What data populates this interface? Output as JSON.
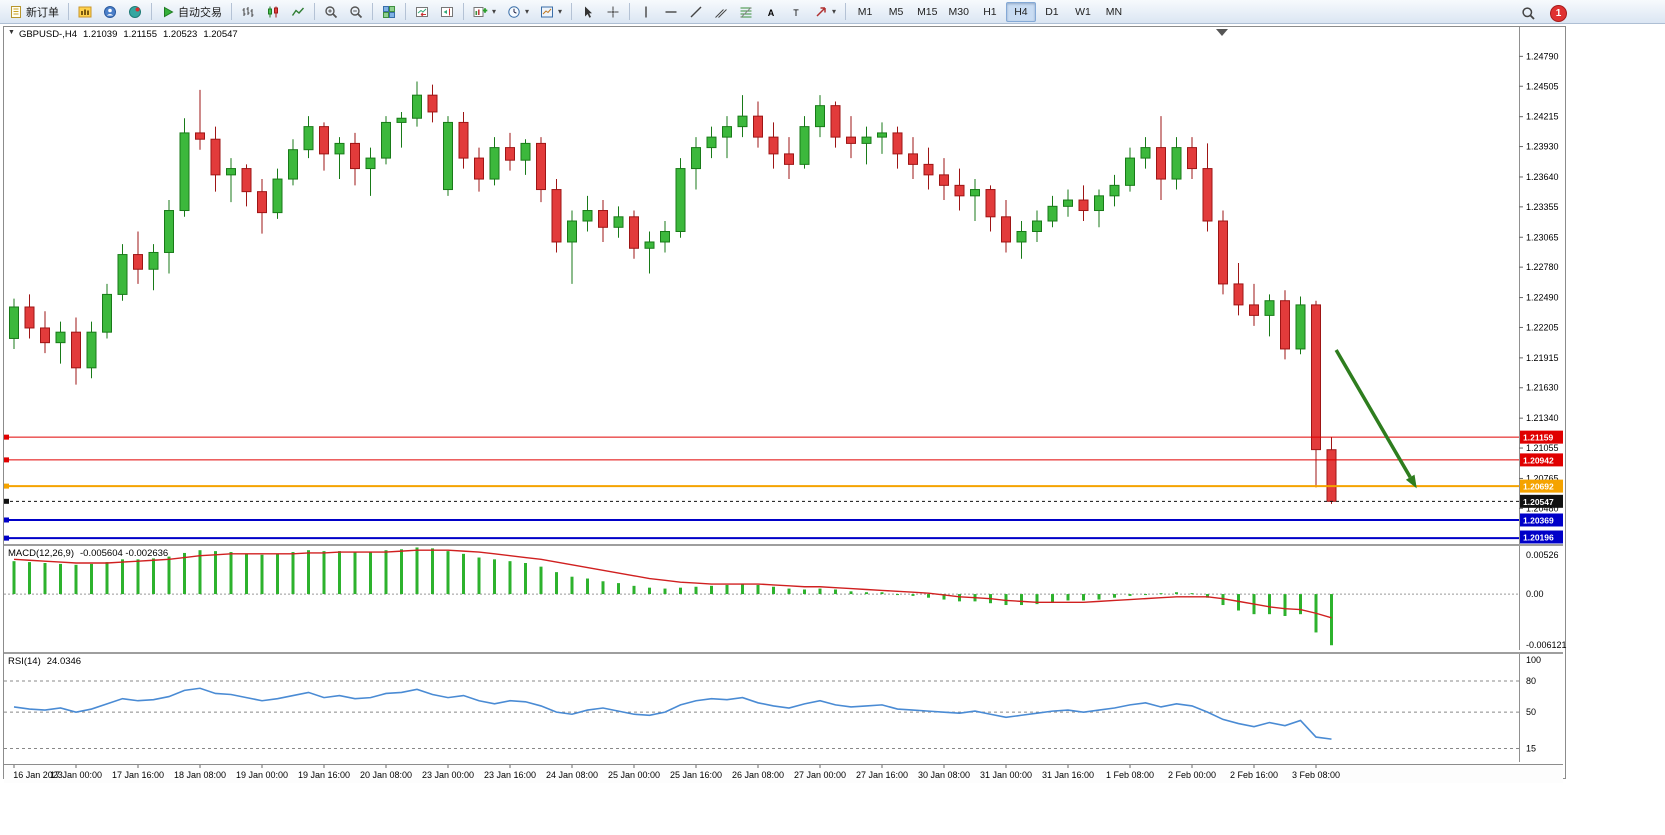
{
  "toolbar": {
    "groups": [
      {
        "items": [
          {
            "name": "new-order-button",
            "icon": "new-order-icon",
            "label": "新订单"
          }
        ]
      },
      {
        "items": [
          {
            "name": "charts-button",
            "icon": "charts-icon"
          },
          {
            "name": "market-watch-button",
            "icon": "market-watch-icon"
          },
          {
            "name": "navigator-button",
            "icon": "navigator-icon"
          }
        ]
      },
      {
        "items": [
          {
            "name": "autotrading-button",
            "icon": "autotrading-icon",
            "label": "自动交易"
          }
        ]
      },
      {
        "items": [
          {
            "name": "bar-chart-button",
            "icon": "bar-chart-icon"
          },
          {
            "name": "candlestick-chart-button",
            "icon": "candlestick-icon"
          },
          {
            "name": "line-chart-button",
            "icon": "line-chart-icon"
          }
        ]
      },
      {
        "items": [
          {
            "name": "zoom-in-button",
            "icon": "zoom-in-icon"
          },
          {
            "name": "zoom-out-button",
            "icon": "zoom-out-icon"
          }
        ]
      },
      {
        "items": [
          {
            "name": "tile-windows-button",
            "icon": "tile-windows-icon"
          }
        ]
      },
      {
        "items": [
          {
            "name": "auto-scroll-button",
            "icon": "auto-scroll-icon"
          },
          {
            "name": "chart-shift-button",
            "icon": "chart-shift-icon"
          }
        ]
      },
      {
        "items": [
          {
            "name": "new-chart-button",
            "icon": "new-chart-icon",
            "dropdown": true
          },
          {
            "name": "periods-button",
            "icon": "period-icon",
            "dropdown": true
          },
          {
            "name": "templates-button",
            "icon": "template-icon",
            "dropdown": true
          }
        ]
      },
      {
        "items": [
          {
            "name": "cursor-button",
            "icon": "cursor-icon"
          },
          {
            "name": "crosshair-button",
            "icon": "crosshair-icon"
          }
        ]
      },
      {
        "items": [
          {
            "name": "vertical-line-button",
            "icon": "vertical-line-icon"
          },
          {
            "name": "horizontal-line-button",
            "icon": "horizontal-line-icon"
          },
          {
            "name": "trendline-button",
            "icon": "trendline-icon"
          },
          {
            "name": "channel-button",
            "icon": "channel-icon"
          },
          {
            "name": "fibonacci-button",
            "icon": "fibonacci-icon"
          },
          {
            "name": "text-button",
            "icon": "text-icon"
          },
          {
            "name": "label-button",
            "icon": "label-icon"
          },
          {
            "name": "arrows-button",
            "icon": "arrows-icon",
            "dropdown": true
          }
        ]
      }
    ],
    "timeframes": [
      "M1",
      "M5",
      "M15",
      "M30",
      "H1",
      "H4",
      "D1",
      "W1",
      "MN"
    ],
    "active_timeframe": "H4",
    "badge_count": "1"
  },
  "chart": {
    "symbol_label": "GBPUSD-,H4",
    "ohlc": {
      "open": "1.21039",
      "high": "1.21155",
      "low": "1.20523",
      "close": "1.20547"
    }
  },
  "chart_data": {
    "type": "candlestick",
    "symbol": "GBPUSD",
    "timeframe": "H4",
    "label_every": 4,
    "x_labels": [
      "16 Jan 2023",
      "17 Jan 00:00",
      "17 Jan 16:00",
      "18 Jan 08:00",
      "19 Jan 00:00",
      "19 Jan 16:00",
      "20 Jan 08:00",
      "23 Jan 00:00",
      "23 Jan 16:00",
      "24 Jan 08:00",
      "25 Jan 00:00",
      "25 Jan 16:00",
      "26 Jan 08:00",
      "27 Jan 00:00",
      "27 Jan 16:00",
      "30 Jan 08:00",
      "31 Jan 00:00",
      "31 Jan 16:00",
      "1 Feb 08:00",
      "2 Feb 00:00",
      "2 Feb 16:00",
      "3 Feb 08:00"
    ],
    "candles": [
      [
        1.221,
        1.2248,
        1.22,
        1.224
      ],
      [
        1.224,
        1.2252,
        1.221,
        1.222
      ],
      [
        1.222,
        1.2236,
        1.2196,
        1.2206
      ],
      [
        1.2206,
        1.2226,
        1.2186,
        1.2216
      ],
      [
        1.2216,
        1.223,
        1.2166,
        1.2182
      ],
      [
        1.2182,
        1.2226,
        1.2172,
        1.2216
      ],
      [
        1.2216,
        1.2262,
        1.221,
        1.2252
      ],
      [
        1.2252,
        1.23,
        1.2246,
        1.229
      ],
      [
        1.229,
        1.2312,
        1.2262,
        1.2276
      ],
      [
        1.2276,
        1.23,
        1.2256,
        1.2292
      ],
      [
        1.2292,
        1.2342,
        1.2272,
        1.2332
      ],
      [
        1.2332,
        1.242,
        1.2326,
        1.2406
      ],
      [
        1.2406,
        1.2447,
        1.239,
        1.24
      ],
      [
        1.24,
        1.2412,
        1.235,
        1.2366
      ],
      [
        1.2366,
        1.2382,
        1.234,
        1.2372
      ],
      [
        1.2372,
        1.2376,
        1.2336,
        1.235
      ],
      [
        1.235,
        1.2362,
        1.231,
        1.233
      ],
      [
        1.233,
        1.2372,
        1.2324,
        1.2362
      ],
      [
        1.2362,
        1.24,
        1.2356,
        1.239
      ],
      [
        1.239,
        1.2422,
        1.2382,
        1.2412
      ],
      [
        1.2412,
        1.2416,
        1.237,
        1.2386
      ],
      [
        1.2386,
        1.2402,
        1.2362,
        1.2396
      ],
      [
        1.2396,
        1.2406,
        1.2356,
        1.2372
      ],
      [
        1.2372,
        1.2392,
        1.2346,
        1.2382
      ],
      [
        1.2382,
        1.2422,
        1.2376,
        1.2416
      ],
      [
        1.2416,
        1.2426,
        1.2392,
        1.242
      ],
      [
        1.242,
        1.2455,
        1.2412,
        1.2442
      ],
      [
        1.2442,
        1.2452,
        1.2416,
        1.2426
      ],
      [
        1.2352,
        1.2422,
        1.2346,
        1.2416
      ],
      [
        1.2416,
        1.2426,
        1.2372,
        1.2382
      ],
      [
        1.2382,
        1.2392,
        1.235,
        1.2362
      ],
      [
        1.2362,
        1.2402,
        1.2356,
        1.2392
      ],
      [
        1.2392,
        1.2406,
        1.237,
        1.238
      ],
      [
        1.238,
        1.24,
        1.2366,
        1.2396
      ],
      [
        1.2396,
        1.2402,
        1.234,
        1.2352
      ],
      [
        1.2352,
        1.2362,
        1.2292,
        1.2302
      ],
      [
        1.2302,
        1.2332,
        1.2262,
        1.2322
      ],
      [
        1.2322,
        1.2346,
        1.2312,
        1.2332
      ],
      [
        1.2332,
        1.2342,
        1.2302,
        1.2316
      ],
      [
        1.2316,
        1.2336,
        1.2306,
        1.2326
      ],
      [
        1.2326,
        1.2332,
        1.2286,
        1.2296
      ],
      [
        1.2296,
        1.2312,
        1.2272,
        1.2302
      ],
      [
        1.2302,
        1.2322,
        1.2292,
        1.2312
      ],
      [
        1.2312,
        1.2382,
        1.2306,
        1.2372
      ],
      [
        1.2372,
        1.2402,
        1.2352,
        1.2392
      ],
      [
        1.2392,
        1.2412,
        1.2382,
        1.2402
      ],
      [
        1.2402,
        1.2422,
        1.2382,
        1.2412
      ],
      [
        1.2412,
        1.2442,
        1.2402,
        1.2422
      ],
      [
        1.2422,
        1.2436,
        1.2392,
        1.2402
      ],
      [
        1.2402,
        1.2416,
        1.2372,
        1.2386
      ],
      [
        1.2386,
        1.2402,
        1.2362,
        1.2376
      ],
      [
        1.2376,
        1.2422,
        1.2372,
        1.2412
      ],
      [
        1.2412,
        1.2442,
        1.2402,
        1.2432
      ],
      [
        1.2432,
        1.2436,
        1.2392,
        1.2402
      ],
      [
        1.2402,
        1.2422,
        1.2382,
        1.2396
      ],
      [
        1.2396,
        1.2412,
        1.2376,
        1.2402
      ],
      [
        1.2402,
        1.2416,
        1.2386,
        1.2406
      ],
      [
        1.2406,
        1.2412,
        1.2372,
        1.2386
      ],
      [
        1.2386,
        1.2402,
        1.2362,
        1.2376
      ],
      [
        1.2376,
        1.2392,
        1.2352,
        1.2366
      ],
      [
        1.2366,
        1.2382,
        1.2342,
        1.2356
      ],
      [
        1.2356,
        1.2372,
        1.2332,
        1.2346
      ],
      [
        1.2346,
        1.2362,
        1.2322,
        1.2352
      ],
      [
        1.2352,
        1.2356,
        1.2312,
        1.2326
      ],
      [
        1.2326,
        1.2342,
        1.2292,
        1.2302
      ],
      [
        1.2302,
        1.2322,
        1.2286,
        1.2312
      ],
      [
        1.2312,
        1.2332,
        1.2302,
        1.2322
      ],
      [
        1.2322,
        1.2346,
        1.2316,
        1.2336
      ],
      [
        1.2336,
        1.2352,
        1.2326,
        1.2342
      ],
      [
        1.2342,
        1.2356,
        1.2322,
        1.2332
      ],
      [
        1.2332,
        1.2352,
        1.2316,
        1.2346
      ],
      [
        1.2346,
        1.2366,
        1.2336,
        1.2356
      ],
      [
        1.2356,
        1.2392,
        1.235,
        1.2382
      ],
      [
        1.2382,
        1.2402,
        1.2372,
        1.2392
      ],
      [
        1.2392,
        1.2422,
        1.2342,
        1.2362
      ],
      [
        1.2362,
        1.2402,
        1.2352,
        1.2392
      ],
      [
        1.2392,
        1.2402,
        1.2362,
        1.2372
      ],
      [
        1.2372,
        1.2396,
        1.2312,
        1.2322
      ],
      [
        1.2322,
        1.2332,
        1.2252,
        1.2262
      ],
      [
        1.2262,
        1.2282,
        1.2232,
        1.2242
      ],
      [
        1.2242,
        1.2262,
        1.2222,
        1.2232
      ],
      [
        1.2232,
        1.2252,
        1.2212,
        1.2246
      ],
      [
        1.2246,
        1.2256,
        1.219,
        1.22
      ],
      [
        1.22,
        1.225,
        1.2195,
        1.2242
      ],
      [
        1.2242,
        1.2246,
        1.2068,
        1.2104
      ],
      [
        1.21039,
        1.21155,
        1.20523,
        1.20547
      ]
    ],
    "price_scale": {
      "ticks": [
        "1.24790",
        "1.24505",
        "1.24215",
        "1.23930",
        "1.23640",
        "1.23355",
        "1.23065",
        "1.22780",
        "1.22490",
        "1.22205",
        "1.21915",
        "1.21630",
        "1.21340",
        "1.21055",
        "1.20765",
        "1.20480"
      ]
    },
    "hlines": [
      {
        "name": "resistance-line-1",
        "price": 1.21159,
        "label": "1.21159",
        "color": "#e00000",
        "width": 1,
        "dashed": false
      },
      {
        "name": "resistance-line-2",
        "price": 1.20942,
        "label": "1.20942",
        "color": "#e00000",
        "width": 1,
        "dashed": false
      },
      {
        "name": "support-line-orange",
        "price": 1.20692,
        "label": "1.20692",
        "color": "#f5a300",
        "width": 2,
        "dashed": false
      },
      {
        "name": "current-price-line",
        "price": 1.20547,
        "label": "1.20547",
        "color": "#111111",
        "width": 1,
        "dashed": true
      },
      {
        "name": "support-line-blue-1",
        "price": 1.20369,
        "label": "1.20369",
        "color": "#0000c8",
        "width": 2,
        "dashed": false
      },
      {
        "name": "support-line-blue-2",
        "price": 1.20196,
        "label": "1.20196",
        "color": "#0000c8",
        "width": 2,
        "dashed": false
      }
    ],
    "annotations": {
      "arrow": {
        "from_bar": 85.3,
        "from_price": 1.2199,
        "to_bar": 90.5,
        "to_price": 1.2067,
        "color": "#2e7d1e"
      }
    },
    "macd": {
      "name_label": "MACD(12,26,9)",
      "value_label": "-0.005604 -0.002636",
      "scale_labels": {
        "max": "0.00526",
        "zero": "0.00",
        "min": "-0.006121"
      },
      "histogram": [
        0.0036,
        0.0035,
        0.0034,
        0.0033,
        0.0032,
        0.0033,
        0.0035,
        0.0038,
        0.0038,
        0.0039,
        0.0041,
        0.0045,
        0.0048,
        0.0047,
        0.0046,
        0.0044,
        0.0043,
        0.0044,
        0.0046,
        0.0048,
        0.0047,
        0.0047,
        0.0046,
        0.0046,
        0.0048,
        0.0049,
        0.0051,
        0.005,
        0.0047,
        0.0044,
        0.004,
        0.0038,
        0.0036,
        0.0034,
        0.003,
        0.0024,
        0.0019,
        0.0017,
        0.0014,
        0.0012,
        0.0009,
        0.0007,
        0.0006,
        0.0007,
        0.0008,
        0.0009,
        0.001,
        0.0011,
        0.001,
        0.0008,
        0.0006,
        0.0005,
        0.0006,
        0.0005,
        0.0003,
        0.0002,
        0.0002,
        0.0,
        -0.0002,
        -0.0004,
        -0.0006,
        -0.0008,
        -0.0008,
        -0.001,
        -0.0012,
        -0.0012,
        -0.0011,
        -0.0009,
        -0.0007,
        -0.0007,
        -0.0006,
        -0.0004,
        -0.0002,
        0.0,
        0.0001,
        0.0002,
        0.0001,
        -0.0004,
        -0.0012,
        -0.0018,
        -0.0022,
        -0.0022,
        -0.0024,
        -0.0022,
        -0.0042,
        -0.0056
      ],
      "signal": [
        0.0038,
        0.0037,
        0.0036,
        0.0035,
        0.0034,
        0.0034,
        0.0034,
        0.0035,
        0.0036,
        0.0037,
        0.0038,
        0.004,
        0.0042,
        0.0043,
        0.0044,
        0.0044,
        0.0044,
        0.0044,
        0.0044,
        0.0045,
        0.0045,
        0.0046,
        0.0046,
        0.0046,
        0.0046,
        0.0047,
        0.0048,
        0.0048,
        0.0048,
        0.0047,
        0.0046,
        0.0044,
        0.0042,
        0.004,
        0.0038,
        0.0035,
        0.0032,
        0.0029,
        0.0026,
        0.0023,
        0.002,
        0.0017,
        0.0015,
        0.0013,
        0.0012,
        0.0011,
        0.0011,
        0.0011,
        0.0011,
        0.001,
        0.0009,
        0.0008,
        0.0008,
        0.0007,
        0.0006,
        0.0005,
        0.0004,
        0.0003,
        0.0002,
        0.0001,
        -0.0001,
        -0.0003,
        -0.0004,
        -0.0005,
        -0.0007,
        -0.0008,
        -0.0009,
        -0.0009,
        -0.0009,
        -0.0009,
        -0.0008,
        -0.0007,
        -0.0006,
        -0.0005,
        -0.0004,
        -0.0003,
        -0.0003,
        -0.0003,
        -0.0005,
        -0.0008,
        -0.0011,
        -0.0014,
        -0.0016,
        -0.0017,
        -0.0021,
        -0.0026
      ]
    },
    "rsi": {
      "name_label": "RSI(14)",
      "value_label": "24.0346",
      "levels": [
        80,
        50,
        15
      ],
      "scale": [
        {
          "label": "100",
          "value": 100
        },
        {
          "label": "80",
          "value": 80
        },
        {
          "label": "50",
          "value": 50
        },
        {
          "label": "15",
          "value": 15
        }
      ],
      "values": [
        55,
        53,
        52,
        54,
        50,
        53,
        58,
        63,
        61,
        62,
        65,
        71,
        73,
        68,
        67,
        64,
        61,
        63,
        66,
        69,
        64,
        66,
        63,
        64,
        68,
        69,
        72,
        67,
        64,
        66,
        61,
        58,
        61,
        60,
        56,
        50,
        48,
        52,
        54,
        51,
        48,
        47,
        50,
        57,
        61,
        63,
        62,
        64,
        59,
        56,
        54,
        58,
        61,
        57,
        55,
        56,
        57,
        53,
        52,
        51,
        50,
        49,
        51,
        48,
        45,
        47,
        49,
        51,
        52,
        50,
        52,
        54,
        57,
        59,
        55,
        58,
        56,
        50,
        43,
        39,
        36,
        40,
        37,
        42,
        26,
        24.0346
      ]
    }
  }
}
